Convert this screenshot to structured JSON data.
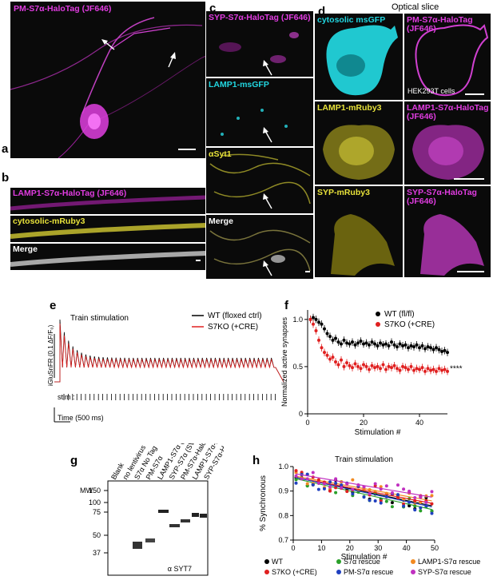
{
  "panels": {
    "a": {
      "letter": "a",
      "label": "PM-S7α-HaloTag (JF646)"
    },
    "b": {
      "letter": "b",
      "rows": [
        "LAMP1-S7α-HaloTag (JF646)",
        "cytosolic-mRuby3",
        "Merge"
      ]
    },
    "c": {
      "letter": "c",
      "rows": [
        "SYP-S7α-HaloTag (JF646)",
        "LAMP1-msGFP",
        "αSyt1",
        "Merge"
      ]
    },
    "d": {
      "letter": "d",
      "title": "Optical slice",
      "cells": [
        "cytosolic msGFP",
        "PM-S7α-HaloTag (JF646)",
        "LAMP1-mRuby3",
        "LAMP1-S7α-HaloTag (JF646)",
        "SYP-mRuby3",
        "SYP-S7α-HaloTag (JF646)"
      ],
      "note": "HEK293T cells"
    },
    "e": {
      "letter": "e",
      "title": "Train stimulation",
      "ylabel": "iGluSnFR (0.1 ΔF/F₀)",
      "stim": "stim :",
      "time": "Time (500 ms)",
      "legend": [
        "WT (floxed ctrl)",
        "S7KO (+CRE)"
      ]
    },
    "f": {
      "letter": "f"
    },
    "g": {
      "letter": "g",
      "mw": "MW",
      "antibody": "α SYT7",
      "lanes": [
        "Blank",
        "no lentivirus",
        "S7α No Tag",
        "PM-S7α",
        "LAMP1-S7α (Lyso-S7)",
        "SYP-S7α (SV-S7)",
        "PM-S7α-HaloTag",
        "LAMP1-S7α-HaloTag",
        "SYP-S7α-HaloTag"
      ],
      "markers": [
        "150",
        "100",
        "75",
        "50",
        "37"
      ]
    },
    "h": {
      "letter": "h",
      "title": "Train stimulation",
      "legend": [
        "WT",
        "S7α rescue",
        "LAMP1-S7α rescue",
        "S7KO (+CRE)",
        "PM-S7α rescue",
        "SYP-S7α rescue"
      ]
    }
  },
  "colors": {
    "magenta": "#e03ce0",
    "cyan": "#22d6e0",
    "yellow": "#e8e23a",
    "wt": "#000000",
    "ko": "#e02020",
    "s7": "#2aa02a",
    "lamp1": "#f28a20",
    "pm": "#2040c0",
    "syp": "#c030c0"
  },
  "chart_data": [
    {
      "type": "line",
      "title": "",
      "xlabel": "Stimulation #",
      "ylabel": "Normalized active synapses",
      "xlim": [
        0,
        50
      ],
      "ylim": [
        0,
        1.1
      ],
      "xticks": [
        0,
        20,
        40
      ],
      "yticks": [
        0,
        0.5,
        1.0
      ],
      "significance": "****",
      "legend_position": "top-right",
      "series": [
        {
          "name": "WT (fl/fl)",
          "color": "#000000",
          "x": [
            1,
            2,
            3,
            4,
            5,
            6,
            7,
            8,
            9,
            10,
            11,
            12,
            13,
            14,
            15,
            16,
            17,
            18,
            19,
            20,
            21,
            22,
            23,
            24,
            25,
            26,
            27,
            28,
            29,
            30,
            31,
            32,
            33,
            34,
            35,
            36,
            37,
            38,
            39,
            40,
            41,
            42,
            43,
            44,
            45,
            46,
            47,
            48,
            49,
            50
          ],
          "y": [
            1.0,
            1.02,
            1.0,
            0.97,
            0.95,
            0.9,
            0.85,
            0.82,
            0.78,
            0.8,
            0.76,
            0.74,
            0.78,
            0.75,
            0.74,
            0.76,
            0.73,
            0.75,
            0.77,
            0.74,
            0.75,
            0.73,
            0.76,
            0.74,
            0.72,
            0.75,
            0.73,
            0.74,
            0.72,
            0.76,
            0.73,
            0.71,
            0.74,
            0.72,
            0.73,
            0.7,
            0.72,
            0.71,
            0.73,
            0.7,
            0.72,
            0.69,
            0.71,
            0.7,
            0.68,
            0.7,
            0.68,
            0.66,
            0.67,
            0.65
          ]
        },
        {
          "name": "S7KO (+CRE)",
          "color": "#e02020",
          "x": [
            1,
            2,
            3,
            4,
            5,
            6,
            7,
            8,
            9,
            10,
            11,
            12,
            13,
            14,
            15,
            16,
            17,
            18,
            19,
            20,
            21,
            22,
            23,
            24,
            25,
            26,
            27,
            28,
            29,
            30,
            31,
            32,
            33,
            34,
            35,
            36,
            37,
            38,
            39,
            40,
            41,
            42,
            43,
            44,
            45,
            46,
            47,
            48,
            49,
            50
          ],
          "y": [
            1.0,
            0.95,
            0.88,
            0.78,
            0.7,
            0.65,
            0.62,
            0.58,
            0.6,
            0.55,
            0.52,
            0.57,
            0.5,
            0.54,
            0.51,
            0.49,
            0.53,
            0.5,
            0.48,
            0.52,
            0.5,
            0.47,
            0.51,
            0.49,
            0.5,
            0.48,
            0.52,
            0.47,
            0.5,
            0.49,
            0.51,
            0.48,
            0.46,
            0.5,
            0.49,
            0.47,
            0.5,
            0.46,
            0.48,
            0.47,
            0.49,
            0.45,
            0.48,
            0.46,
            0.47,
            0.45,
            0.48,
            0.46,
            0.47,
            0.45
          ]
        }
      ]
    },
    {
      "type": "scatter",
      "title": "Train stimulation",
      "xlabel": "Stimulation #",
      "ylabel": "% Synchronous",
      "xlim": [
        0,
        50
      ],
      "ylim": [
        0.7,
        1.0
      ],
      "xticks": [
        0,
        10,
        20,
        30,
        40,
        50
      ],
      "yticks": [
        0.7,
        0.8,
        0.9,
        1.0
      ],
      "series": [
        {
          "name": "WT",
          "color": "#000000",
          "fit": [
            0.955,
            0.84
          ]
        },
        {
          "name": "S7α rescue",
          "color": "#2aa02a",
          "fit": [
            0.95,
            0.825
          ]
        },
        {
          "name": "LAMP1-S7α rescue",
          "color": "#f28a20",
          "fit": [
            0.96,
            0.86
          ]
        },
        {
          "name": "S7KO (+CRE)",
          "color": "#e02020",
          "fit": [
            0.955,
            0.85
          ]
        },
        {
          "name": "PM-S7α rescue",
          "color": "#2040c0",
          "fit": [
            0.955,
            0.835
          ]
        },
        {
          "name": "SYP-S7α rescue",
          "color": "#c030c0",
          "fit": [
            0.97,
            0.875
          ]
        }
      ]
    }
  ]
}
